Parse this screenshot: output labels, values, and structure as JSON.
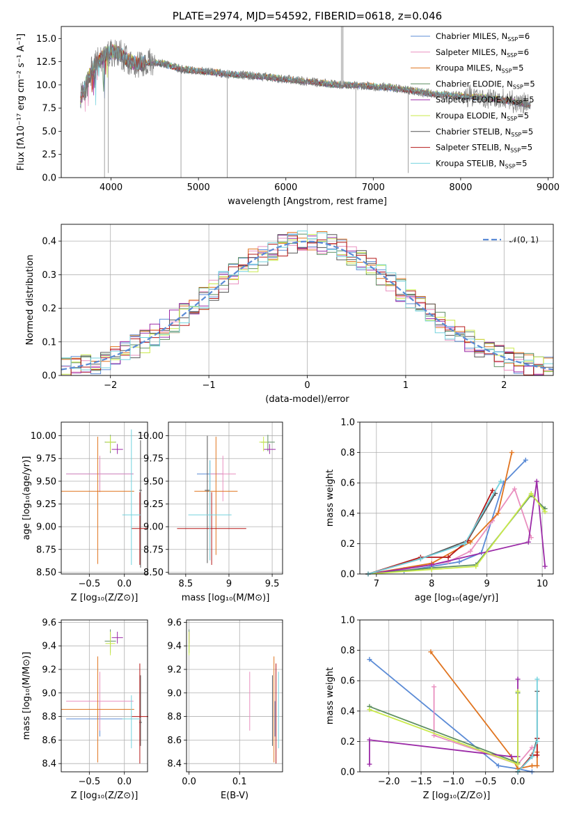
{
  "colors": {
    "Chabrier MILES": "#5b8bd6",
    "Salpeter MILES": "#e98fbf",
    "Kroupa MILES": "#e0741f",
    "Chabrier ELODIE": "#5e8e62",
    "Salpeter ELODIE": "#9b2aa7",
    "Kroupa ELODIE": "#c9ea4a",
    "Chabrier STELIB": "#555555",
    "Salpeter STELIB": "#b51818",
    "Kroupa STELIB": "#73d2de"
  },
  "chart_data": [
    {
      "id": "spectrum",
      "type": "line",
      "title": "PLATE=2974, MJD=54592, FIBERID=0618, z=0.046",
      "xlabel": "wavelength [Angstrom, rest frame]",
      "ylabel": "Flux [fλ10⁻¹⁷ erg cm⁻² s⁻¹ A⁻¹]",
      "xlim": [
        3430,
        9060
      ],
      "ylim": [
        0,
        16.3
      ],
      "xticks": [
        4000,
        5000,
        6000,
        7000,
        8000,
        9000
      ],
      "yticks": [
        0.0,
        2.5,
        5.0,
        7.5,
        10.0,
        12.5,
        15.0
      ],
      "legend_position": "top-right",
      "legend": [
        {
          "name": "Chabrier MILES",
          "nssp": "6"
        },
        {
          "name": "Salpeter MILES",
          "nssp": "6"
        },
        {
          "name": "Kroupa MILES",
          "nssp": "5"
        },
        {
          "name": "Chabrier ELODIE",
          "nssp": "5"
        },
        {
          "name": "Salpeter ELODIE",
          "nssp": "5"
        },
        {
          "name": "Kroupa ELODIE",
          "nssp": "5"
        },
        {
          "name": "Chabrier STELIB",
          "nssp": "5"
        },
        {
          "name": "Salpeter STELIB",
          "nssp": "5"
        },
        {
          "name": "Kroupa STELIB",
          "nssp": "5"
        }
      ],
      "data_continuum": {
        "x": [
          3650,
          3700,
          3800,
          3900,
          4000,
          4100,
          4200,
          4300,
          4400,
          4600,
          4800,
          5000,
          5300,
          5600,
          6000,
          6300,
          6600,
          6900,
          7200,
          7500,
          7700,
          8000,
          8300,
          8600,
          8800
        ],
        "y": [
          8.5,
          9.8,
          12.0,
          13.0,
          13.6,
          13.4,
          12.6,
          12.2,
          12.4,
          12.3,
          11.7,
          11.5,
          11.2,
          11.0,
          10.6,
          10.3,
          10.0,
          9.9,
          9.7,
          9.3,
          9.0,
          8.8,
          8.6,
          8.2,
          7.8
        ]
      }
    },
    {
      "id": "residuals",
      "type": "histogram",
      "xlabel": "(data-model)/error",
      "ylabel": "Normed distribution",
      "xlim": [
        -2.5,
        2.5
      ],
      "ylim": [
        0,
        0.45
      ],
      "xticks": [
        -2,
        -1,
        0,
        1,
        2
      ],
      "yticks": [
        0.0,
        0.1,
        0.2,
        0.3,
        0.4
      ],
      "grid": true,
      "legend": [
        "𝒩(0, 1)"
      ],
      "legend_position": "top-right"
    },
    {
      "id": "age-vs-Z",
      "type": "scatter",
      "xlabel": "Z [log₁₀(Z/Z⊙)]",
      "ylabel": "age  [log₁₀(age/yr)]",
      "xlim": [
        -0.9,
        0.33
      ],
      "ylim": [
        8.48,
        10.15
      ],
      "xticks": [
        -0.5,
        0.0
      ],
      "yticks": [
        8.5,
        8.75,
        9.0,
        9.25,
        9.5,
        9.75,
        10.0
      ],
      "grid": true,
      "points": [
        {
          "series": "Chabrier MILES",
          "x": -0.35,
          "y": 9.58,
          "xerr": 0.48,
          "yerr": [
            0.2,
            0.15
          ]
        },
        {
          "series": "Salpeter MILES",
          "x": -0.35,
          "y": 9.58,
          "xerr": 0.48,
          "yerr": [
            0.2,
            0.2
          ]
        },
        {
          "series": "Kroupa MILES",
          "x": -0.38,
          "y": 9.39,
          "xerr": 0.52,
          "yerr": [
            0.8,
            0.6
          ]
        },
        {
          "series": "Chabrier ELODIE",
          "x": -0.2,
          "y": 9.93,
          "xerr": 0.08,
          "yerr": [
            0.12,
            0.08
          ]
        },
        {
          "series": "Salpeter ELODIE",
          "x": -0.1,
          "y": 9.85,
          "xerr": 0.08,
          "yerr": [
            0.05,
            0.06
          ]
        },
        {
          "series": "Kroupa ELODIE",
          "x": -0.2,
          "y": 9.93,
          "xerr": 0.07,
          "yerr": [
            0.1,
            0.07
          ]
        },
        {
          "series": "Chabrier STELIB",
          "x": 0.23,
          "y": 9.4,
          "xerr": 0.02,
          "yerr": [
            0.85,
            0.55
          ]
        },
        {
          "series": "Salpeter STELIB",
          "x": 0.22,
          "y": 8.98,
          "xerr": 0.12,
          "yerr": [
            0.4,
            0.4
          ]
        },
        {
          "series": "Kroupa STELIB",
          "x": 0.1,
          "y": 9.13,
          "xerr": 0.13,
          "yerr": [
            0.55,
            0.94
          ]
        }
      ]
    },
    {
      "id": "age-vs-mass",
      "type": "scatter",
      "xlabel": "mass [log₁₀(M/M⊙)]",
      "xlim": [
        8.3,
        9.62
      ],
      "ylim": [
        8.48,
        10.15
      ],
      "xticks": [
        8.5,
        9.0,
        9.5
      ],
      "yticks": [
        8.5,
        8.75,
        9.0,
        9.25,
        9.5,
        9.75,
        10.0
      ],
      "grid": true,
      "points": [
        {
          "series": "Chabrier MILES",
          "x": 8.78,
          "y": 9.58,
          "xerr": 0.15,
          "yerr": [
            0.2,
            0.15
          ]
        },
        {
          "series": "Salpeter MILES",
          "x": 8.93,
          "y": 9.58,
          "xerr": 0.15,
          "yerr": [
            0.3,
            0.2
          ]
        },
        {
          "series": "Kroupa MILES",
          "x": 8.85,
          "y": 9.39,
          "xerr": 0.25,
          "yerr": [
            0.7,
            0.6
          ]
        },
        {
          "series": "Chabrier ELODIE",
          "x": 9.45,
          "y": 9.93,
          "xerr": 0.08,
          "yerr": [
            0.1,
            0.08
          ]
        },
        {
          "series": "Salpeter ELODIE",
          "x": 9.47,
          "y": 9.85,
          "xerr": 0.07,
          "yerr": [
            0.05,
            0.06
          ]
        },
        {
          "series": "Kroupa ELODIE",
          "x": 9.4,
          "y": 9.93,
          "xerr": 0.05,
          "yerr": [
            0.1,
            0.06
          ]
        },
        {
          "series": "Chabrier STELIB",
          "x": 8.75,
          "y": 9.4,
          "xerr": 0.03,
          "yerr": [
            0.8,
            0.6
          ]
        },
        {
          "series": "Salpeter STELIB",
          "x": 8.8,
          "y": 8.98,
          "xerr": 0.4,
          "yerr": [
            0.4,
            0.4
          ]
        },
        {
          "series": "Kroupa STELIB",
          "x": 8.78,
          "y": 9.13,
          "xerr": 0.25,
          "yerr": [
            0.5,
            0.6
          ]
        }
      ]
    },
    {
      "id": "weight-vs-age",
      "type": "line",
      "xlabel": "age  [log₁₀(age/yr)]",
      "ylabel": "mass weight",
      "xlim": [
        6.7,
        10.2
      ],
      "ylim": [
        0,
        1.0
      ],
      "xticks": [
        7,
        8,
        9,
        10
      ],
      "yticks": [
        0.0,
        0.2,
        0.4,
        0.6,
        0.8,
        1.0
      ],
      "grid": true,
      "series": [
        {
          "name": "Chabrier MILES",
          "x": [
            6.85,
            7.5,
            8.0,
            8.5,
            8.9,
            9.3,
            9.7
          ],
          "y": [
            0.0,
            0.02,
            0.05,
            0.08,
            0.14,
            0.6,
            0.75
          ]
        },
        {
          "name": "Salpeter MILES",
          "x": [
            6.85,
            7.5,
            8.3,
            8.7,
            9.1,
            9.5,
            9.8
          ],
          "y": [
            0.0,
            0.03,
            0.08,
            0.15,
            0.35,
            0.56,
            0.24
          ]
        },
        {
          "name": "Kroupa MILES",
          "x": [
            6.85,
            8.0,
            8.7,
            9.2,
            9.45
          ],
          "y": [
            0.0,
            0.07,
            0.21,
            0.4,
            0.8
          ]
        },
        {
          "name": "Chabrier ELODIE",
          "x": [
            6.85,
            8.0,
            8.8,
            9.8,
            10.05
          ],
          "y": [
            0.0,
            0.04,
            0.06,
            0.52,
            0.43
          ]
        },
        {
          "name": "Salpeter ELODIE",
          "x": [
            6.85,
            8.0,
            9.75,
            9.9,
            10.05
          ],
          "y": [
            0.0,
            0.06,
            0.21,
            0.61,
            0.05
          ]
        },
        {
          "name": "Kroupa ELODIE",
          "x": [
            6.85,
            8.0,
            8.8,
            9.8,
            10.05
          ],
          "y": [
            0.0,
            0.03,
            0.05,
            0.53,
            0.41
          ]
        },
        {
          "name": "Chabrier STELIB",
          "x": [
            6.85,
            7.8,
            8.65,
            9.15
          ],
          "y": [
            0.0,
            0.1,
            0.22,
            0.53
          ]
        },
        {
          "name": "Salpeter STELIB",
          "x": [
            6.85,
            7.8,
            8.3,
            8.65,
            9.1
          ],
          "y": [
            0.0,
            0.11,
            0.11,
            0.22,
            0.55
          ]
        },
        {
          "name": "Kroupa STELIB",
          "x": [
            6.85,
            7.8,
            8.6,
            9.25
          ],
          "y": [
            0.0,
            0.1,
            0.2,
            0.61
          ]
        }
      ]
    },
    {
      "id": "mass-vs-Z",
      "type": "scatter",
      "xlabel": "Z [log₁₀(Z/Z⊙)]",
      "ylabel": "mass [log₁₀(M/M⊙)]",
      "xlim": [
        -0.9,
        0.33
      ],
      "ylim": [
        8.33,
        9.62
      ],
      "xticks": [
        -0.5,
        0.0
      ],
      "yticks": [
        8.4,
        8.6,
        8.8,
        9.0,
        9.2,
        9.4,
        9.6
      ],
      "grid": true,
      "points": [
        {
          "series": "Chabrier MILES",
          "x": -0.35,
          "y": 8.78,
          "xerr": 0.48,
          "yerr": [
            0.15,
            0.15
          ]
        },
        {
          "series": "Salpeter MILES",
          "x": -0.35,
          "y": 8.93,
          "xerr": 0.48,
          "yerr": [
            0.25,
            0.25
          ]
        },
        {
          "series": "Kroupa MILES",
          "x": -0.38,
          "y": 8.86,
          "xerr": 0.52,
          "yerr": [
            0.45,
            0.45
          ]
        },
        {
          "series": "Chabrier ELODIE",
          "x": -0.2,
          "y": 9.44,
          "xerr": 0.08,
          "yerr": [
            0.1,
            0.1
          ]
        },
        {
          "series": "Salpeter ELODIE",
          "x": -0.1,
          "y": 9.47,
          "xerr": 0.08,
          "yerr": [
            0.05,
            0.05
          ]
        },
        {
          "series": "Kroupa ELODIE",
          "x": -0.2,
          "y": 9.42,
          "xerr": 0.07,
          "yerr": [
            0.1,
            0.1
          ]
        },
        {
          "series": "Chabrier STELIB",
          "x": 0.23,
          "y": 8.75,
          "xerr": 0.02,
          "yerr": [
            0.2,
            0.4
          ]
        },
        {
          "series": "Salpeter STELIB",
          "x": 0.22,
          "y": 8.8,
          "xerr": 0.12,
          "yerr": [
            0.4,
            0.45
          ]
        },
        {
          "series": "Kroupa STELIB",
          "x": 0.1,
          "y": 8.78,
          "xerr": 0.13,
          "yerr": [
            0.25,
            0.2
          ]
        }
      ]
    },
    {
      "id": "mass-vs-EBV",
      "type": "scatter",
      "xlabel": "E(B-V)",
      "xlim": [
        -0.005,
        0.185
      ],
      "ylim": [
        8.33,
        9.62
      ],
      "xticks": [
        0.0,
        0.1
      ],
      "yticks": [
        8.4,
        8.6,
        8.8,
        9.0,
        9.2,
        9.4,
        9.6
      ],
      "grid": true,
      "points": [
        {
          "series": "Chabrier MILES",
          "x": 0.17,
          "y": 8.78,
          "yerr": [
            0.15,
            0.15
          ]
        },
        {
          "series": "Salpeter MILES",
          "x": 0.12,
          "y": 8.93,
          "yerr": [
            0.25,
            0.25
          ]
        },
        {
          "series": "Kroupa MILES",
          "x": 0.168,
          "y": 8.86,
          "yerr": [
            0.45,
            0.45
          ]
        },
        {
          "series": "Chabrier ELODIE",
          "x": 0.0,
          "y": 9.44,
          "yerr": [
            0.1,
            0.1
          ]
        },
        {
          "series": "Salpeter ELODIE",
          "x": 0.0,
          "y": 9.47,
          "yerr": [
            0.05,
            0.05
          ]
        },
        {
          "series": "Kroupa ELODIE",
          "x": 0.0,
          "y": 9.42,
          "yerr": [
            0.1,
            0.1
          ]
        },
        {
          "series": "Chabrier STELIB",
          "x": 0.165,
          "y": 8.75,
          "yerr": [
            0.2,
            0.4
          ]
        },
        {
          "series": "Salpeter STELIB",
          "x": 0.172,
          "y": 8.8,
          "yerr": [
            0.4,
            0.45
          ]
        },
        {
          "series": "Kroupa STELIB",
          "x": 0.177,
          "y": 8.78,
          "yerr": [
            0.25,
            0.4
          ]
        }
      ]
    },
    {
      "id": "weight-vs-Z",
      "type": "line",
      "xlabel": "Z [log₁₀(Z/Z⊙)]",
      "ylabel": "mass weight",
      "xlim": [
        -2.45,
        0.55
      ],
      "ylim": [
        0,
        1.0
      ],
      "xticks": [
        -2.0,
        -1.5,
        -1.0,
        -0.5,
        0.0
      ],
      "yticks": [
        0.0,
        0.2,
        0.4,
        0.6,
        0.8,
        1.0
      ],
      "grid": true,
      "series": [
        {
          "name": "Chabrier MILES",
          "x": [
            -2.3,
            -0.3,
            0.0,
            0.22
          ],
          "y": [
            0.74,
            0.04,
            0.02,
            0.0
          ]
        },
        {
          "name": "Salpeter MILES",
          "x": [
            -1.3,
            -1.3,
            0.0,
            0.22
          ],
          "y": [
            0.56,
            0.24,
            0.05,
            0.16
          ]
        },
        {
          "name": "Kroupa MILES",
          "x": [
            -1.35,
            -0.1,
            0.0,
            0.22,
            0.3,
            0.3
          ],
          "y": [
            0.79,
            0.1,
            0.02,
            0.04,
            0.04,
            0.13
          ]
        },
        {
          "name": "Chabrier ELODIE",
          "x": [
            -2.3,
            0.0,
            0.0
          ],
          "y": [
            0.43,
            0.06,
            0.52
          ]
        },
        {
          "name": "Salpeter ELODIE",
          "x": [
            -2.3,
            -2.3,
            -0.1,
            0.0,
            0.0
          ],
          "y": [
            0.05,
            0.21,
            0.1,
            0.1,
            0.61
          ]
        },
        {
          "name": "Kroupa ELODIE",
          "x": [
            -2.3,
            0.0,
            0.0
          ],
          "y": [
            0.41,
            0.05,
            0.53
          ]
        },
        {
          "name": "Chabrier STELIB",
          "x": [
            0.0,
            0.22,
            0.3,
            0.3
          ],
          "y": [
            0.0,
            0.1,
            0.22,
            0.53
          ]
        },
        {
          "name": "Salpeter STELIB",
          "x": [
            0.0,
            0.22,
            0.3,
            0.3
          ],
          "y": [
            0.0,
            0.11,
            0.11,
            0.22
          ]
        },
        {
          "name": "Kroupa STELIB",
          "x": [
            0.0,
            0.22,
            0.3,
            0.3
          ],
          "y": [
            0.0,
            0.1,
            0.2,
            0.61
          ]
        }
      ]
    }
  ]
}
